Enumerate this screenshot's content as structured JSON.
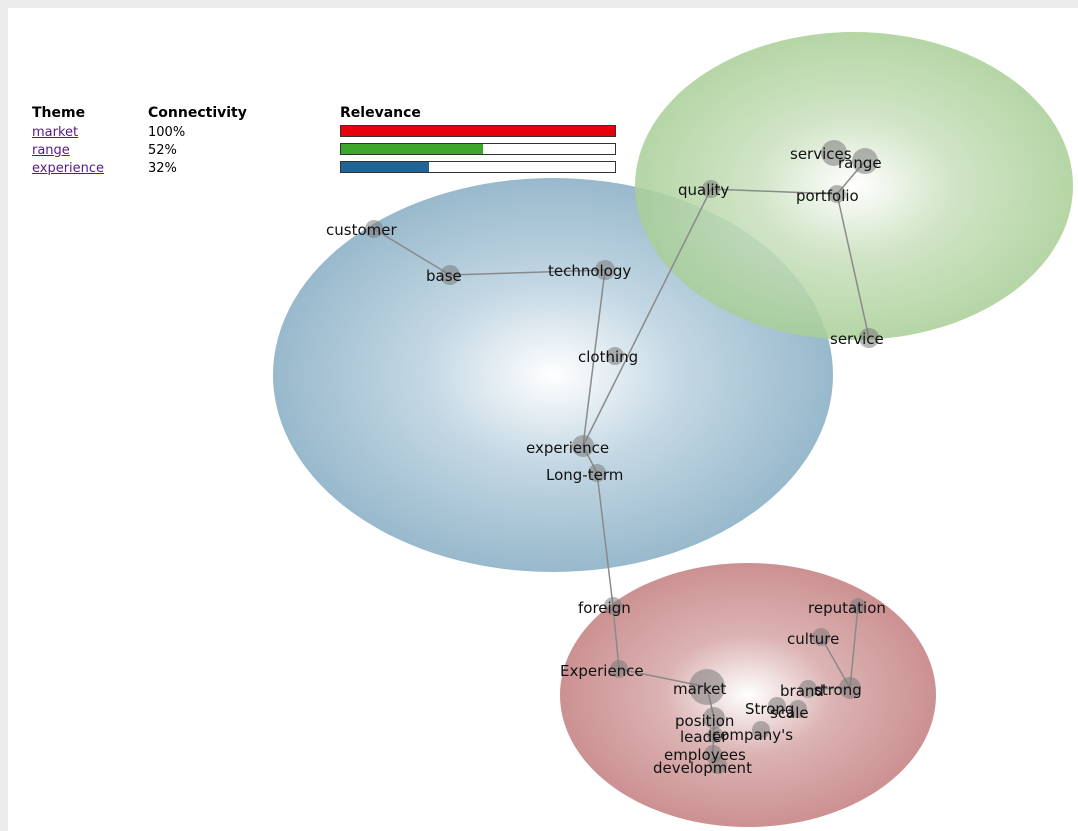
{
  "legend": {
    "headers": {
      "theme": "Theme",
      "connectivity": "Connectivity",
      "relevance": "Relevance"
    },
    "rows": [
      {
        "theme": "market",
        "connectivity": "100%",
        "relevance": 1.0,
        "color": "#e8000b"
      },
      {
        "theme": "range",
        "connectivity": "52%",
        "relevance": 0.52,
        "color": "#3ca52a"
      },
      {
        "theme": "experience",
        "connectivity": "32%",
        "relevance": 0.32,
        "color": "#1f6494"
      }
    ]
  },
  "clusters": [
    {
      "theme": "range",
      "color": "#9cc98a",
      "terms": [
        "services",
        "range",
        "quality",
        "portfolio",
        "service"
      ]
    },
    {
      "theme": "experience",
      "color": "#8fb4c9",
      "terms": [
        "customer",
        "base",
        "technology",
        "clothing",
        "experience",
        "Long-term"
      ]
    },
    {
      "theme": "market",
      "color": "#c98b8c",
      "terms": [
        "foreign",
        "reputation",
        "culture",
        "Experience",
        "market",
        "brand",
        "strong",
        "Strong",
        "scale",
        "position",
        "company's",
        "leader",
        "employees",
        "development"
      ]
    }
  ],
  "links": [
    [
      "customer",
      "base"
    ],
    [
      "base",
      "technology"
    ],
    [
      "technology",
      "experience"
    ],
    [
      "quality",
      "experience"
    ],
    [
      "quality",
      "portfolio"
    ],
    [
      "portfolio",
      "range"
    ],
    [
      "portfolio",
      "service"
    ],
    [
      "experience",
      "Long-term"
    ],
    [
      "Long-term",
      "foreign"
    ],
    [
      "foreign",
      "Experience"
    ],
    [
      "Experience",
      "market"
    ],
    [
      "market",
      "position"
    ],
    [
      "position",
      "employees"
    ],
    [
      "reputation",
      "strong"
    ],
    [
      "culture",
      "strong"
    ],
    [
      "brand",
      "strong"
    ]
  ]
}
